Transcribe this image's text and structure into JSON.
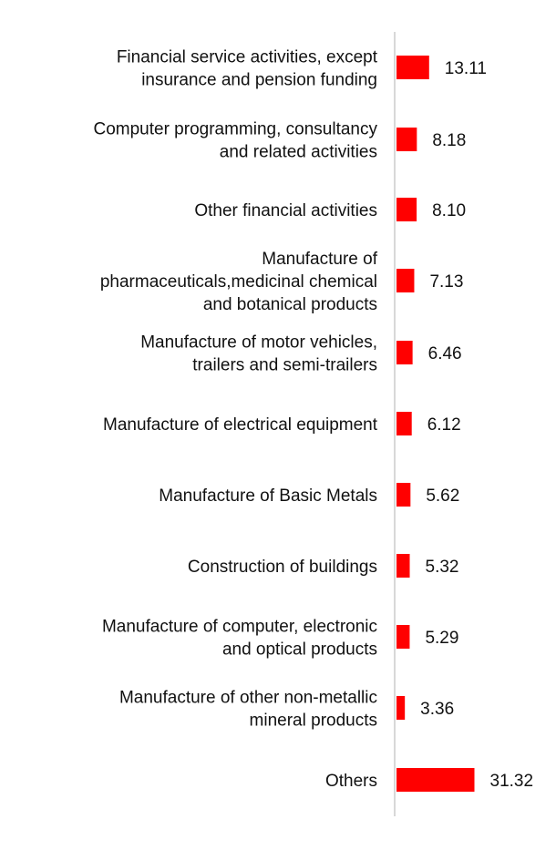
{
  "chart_data": {
    "type": "bar",
    "orientation": "horizontal",
    "title": "",
    "xlabel": "",
    "ylabel": "",
    "categories": [
      [
        "Financial service activities, except",
        "insurance and pension funding"
      ],
      [
        "Computer programming, consultancy",
        "and related activities"
      ],
      [
        "Other financial activities"
      ],
      [
        "Manufacture of",
        "pharmaceuticals,medicinal chemical",
        "and botanical products"
      ],
      [
        "Manufacture of motor vehicles,",
        "trailers and semi-trailers"
      ],
      [
        "Manufacture of electrical equipment"
      ],
      [
        "Manufacture of Basic Metals"
      ],
      [
        "Construction of buildings"
      ],
      [
        "Manufacture of computer, electronic",
        "and optical products"
      ],
      [
        "Manufacture of other non-metallic",
        "mineral products"
      ],
      [
        "Others"
      ]
    ],
    "values": [
      13.11,
      8.18,
      8.1,
      7.13,
      6.46,
      6.12,
      5.62,
      5.32,
      5.29,
      3.36,
      31.32
    ],
    "value_labels": [
      "13.11",
      "8.18",
      "8.10",
      "7.13",
      "6.46",
      "6.12",
      "5.62",
      "5.32",
      "5.29",
      "3.36",
      "31.32"
    ],
    "bar_color": "#ff0000",
    "grid": false,
    "legend": "none"
  }
}
